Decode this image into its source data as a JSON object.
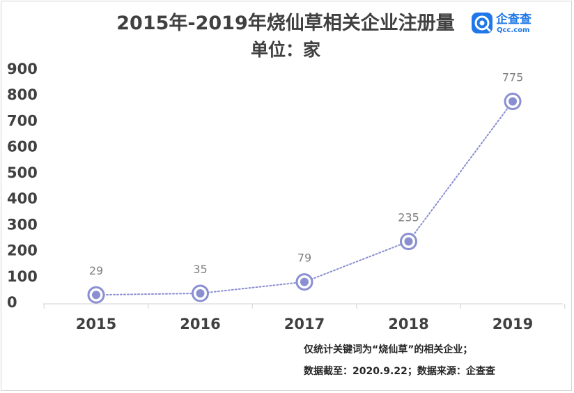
{
  "logo": {
    "name_cn": "企查查",
    "name_en": "Qcc.com",
    "color": "#1f77e8"
  },
  "chart_data": {
    "type": "line",
    "title": "2015年-2019年烧仙草相关企业注册量",
    "subtitle": "单位：家",
    "x": [
      "2015",
      "2016",
      "2017",
      "2018",
      "2019"
    ],
    "series": [
      {
        "values": [
          29,
          35,
          79,
          235,
          775
        ],
        "color": "#8a8fd1",
        "line_style": "dotted",
        "marker": "ring-dot"
      }
    ],
    "data_labels": [
      "29",
      "35",
      "79",
      "235",
      "775"
    ],
    "y_ticks": [
      "0",
      "100",
      "200",
      "300",
      "400",
      "500",
      "600",
      "700",
      "800",
      "900"
    ],
    "ylim": [
      0,
      900
    ],
    "grid": false,
    "legend": "none",
    "notes": [
      "仅统计关键词为“烧仙草”的相关企业；",
      "数据截至：2020.9.22；数据来源：企查查"
    ]
  }
}
